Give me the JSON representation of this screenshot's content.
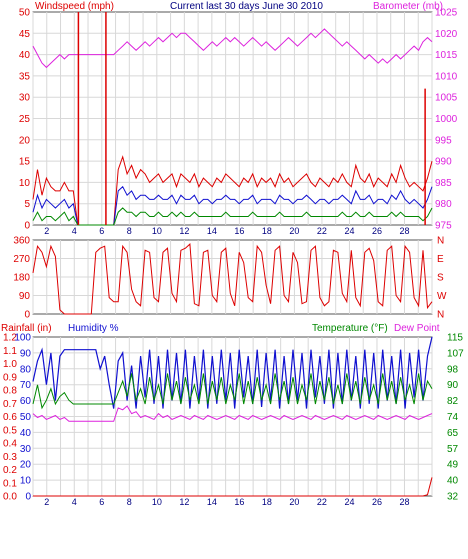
{
  "header": {
    "left_label": "Windspeed (mph)",
    "title": "Current last 30 days June 30 2010",
    "right_label": "Barometer (mb)"
  },
  "colors": {
    "wind_avg": "#1010d0",
    "wind_gust": "#dd0000",
    "wind_low": "#008800",
    "barometer": "#dd22dd",
    "wind_dir": "#dd0000",
    "humidity": "#1010d0",
    "temperature": "#008800",
    "dew_point": "#dd22dd",
    "rainfall": "#dd0000",
    "grid": "#d8d8d8",
    "frame": "#555555"
  },
  "panel3_labels": {
    "rainfall": "Rainfall (in)",
    "humidity": "Humidity %",
    "temperature": "Temperature (°F)",
    "dew_point": "Dew Point"
  },
  "chart_data": [
    {
      "type": "line",
      "title": "Current last 30 days June 30 2010",
      "xlabel": "",
      "x_ticks": [
        "2",
        "4",
        "6",
        "8",
        "10",
        "12",
        "14",
        "16",
        "18",
        "20",
        "22",
        "24",
        "26",
        "28"
      ],
      "xlim": [
        1,
        30
      ],
      "ylabel": "Windspeed (mph)",
      "ylim": [
        0,
        50
      ],
      "y_ticks": [
        "0",
        "5",
        "10",
        "15",
        "20",
        "25",
        "30",
        "35",
        "40",
        "45",
        "50"
      ],
      "y2label": "Barometer (mb)",
      "y2lim": [
        975,
        1025
      ],
      "y2_ticks": [
        "975",
        "980",
        "985",
        "990",
        "995",
        "1000",
        "1005",
        "1010",
        "1015",
        "1020",
        "1025"
      ],
      "grid": true,
      "series": [
        {
          "name": "wind_gust",
          "axis": "left",
          "values": [
            6,
            13,
            7,
            11,
            9,
            8,
            8,
            10,
            8,
            8,
            0,
            0,
            0,
            0,
            0,
            0,
            0,
            0,
            0,
            13,
            16,
            12,
            14,
            11,
            13,
            12,
            10,
            11,
            12,
            10,
            11,
            12,
            9,
            12,
            11,
            10,
            12,
            9,
            11,
            10,
            9,
            11,
            10,
            12,
            11,
            10,
            9,
            11,
            10,
            12,
            9,
            11,
            10,
            11,
            9,
            12,
            10,
            11,
            9,
            10,
            11,
            12,
            10,
            9,
            11,
            10,
            9,
            11,
            10,
            12,
            10,
            9,
            14,
            11,
            10,
            12,
            9,
            11,
            10,
            9,
            12,
            10,
            14,
            11,
            9,
            10,
            9,
            8,
            11,
            15
          ]
        },
        {
          "name": "wind_avg",
          "axis": "left",
          "values": [
            3,
            7,
            4,
            6,
            5,
            4,
            5,
            6,
            4,
            5,
            0,
            0,
            0,
            0,
            0,
            0,
            0,
            0,
            0,
            8,
            9,
            7,
            8,
            6,
            7,
            7,
            6,
            6,
            7,
            6,
            6,
            7,
            5,
            7,
            6,
            6,
            7,
            5,
            6,
            6,
            5,
            6,
            6,
            7,
            6,
            6,
            5,
            6,
            6,
            7,
            5,
            6,
            6,
            6,
            5,
            7,
            6,
            6,
            5,
            6,
            6,
            7,
            6,
            5,
            6,
            6,
            5,
            6,
            6,
            7,
            6,
            5,
            8,
            6,
            6,
            7,
            5,
            6,
            6,
            5,
            7,
            6,
            8,
            6,
            5,
            6,
            5,
            4,
            6,
            9
          ]
        },
        {
          "name": "wind_low",
          "axis": "left",
          "values": [
            1,
            3,
            1,
            2,
            2,
            1,
            2,
            3,
            1,
            2,
            0,
            0,
            0,
            0,
            0,
            0,
            0,
            0,
            0,
            3,
            4,
            3,
            3,
            2,
            3,
            3,
            2,
            2,
            3,
            2,
            2,
            3,
            2,
            3,
            2,
            2,
            3,
            2,
            2,
            2,
            2,
            2,
            2,
            3,
            2,
            2,
            2,
            2,
            2,
            3,
            2,
            2,
            2,
            2,
            2,
            3,
            2,
            2,
            2,
            2,
            2,
            3,
            2,
            2,
            2,
            2,
            2,
            2,
            2,
            3,
            2,
            2,
            3,
            2,
            2,
            3,
            2,
            2,
            2,
            2,
            3,
            2,
            3,
            2,
            2,
            2,
            2,
            1,
            2,
            4
          ]
        },
        {
          "name": "barometer",
          "axis": "right",
          "values": [
            1017,
            1015,
            1013,
            1012,
            1013,
            1014,
            1015,
            1014,
            1015,
            1015,
            1015,
            1015,
            1015,
            1015,
            1015,
            1015,
            1015,
            1015,
            1015,
            1016,
            1017,
            1018,
            1017,
            1016,
            1017,
            1018,
            1017,
            1018,
            1019,
            1018,
            1019,
            1020,
            1019,
            1020,
            1020,
            1019,
            1018,
            1017,
            1016,
            1017,
            1018,
            1017,
            1018,
            1019,
            1018,
            1019,
            1018,
            1017,
            1018,
            1019,
            1018,
            1017,
            1018,
            1017,
            1016,
            1017,
            1018,
            1019,
            1018,
            1017,
            1018,
            1019,
            1020,
            1019,
            1020,
            1021,
            1020,
            1019,
            1018,
            1017,
            1018,
            1017,
            1016,
            1015,
            1014,
            1015,
            1014,
            1013,
            1014,
            1013,
            1014,
            1015,
            1014,
            1015,
            1016,
            1017,
            1016,
            1018,
            1019,
            1018
          ]
        }
      ],
      "spikes": [
        {
          "series": "wind_gust",
          "x": 4.3,
          "value": 50
        },
        {
          "series": "wind_gust",
          "x": 6.3,
          "value": 50
        },
        {
          "series": "wind_gust",
          "x": 29.5,
          "value": 32
        }
      ]
    },
    {
      "type": "line",
      "xlim": [
        1,
        30
      ],
      "ylim": [
        0,
        360
      ],
      "y_ticks": [
        "0",
        "90",
        "180",
        "270",
        "360"
      ],
      "y2_ticks": [
        "N",
        "W",
        "S",
        "E",
        "N"
      ],
      "grid": true,
      "series": [
        {
          "name": "wind_direction",
          "values": [
            200,
            330,
            300,
            230,
            330,
            280,
            20,
            0,
            0,
            0,
            0,
            0,
            0,
            0,
            300,
            320,
            330,
            80,
            60,
            60,
            330,
            300,
            120,
            60,
            40,
            310,
            300,
            80,
            60,
            300,
            320,
            100,
            60,
            310,
            320,
            340,
            50,
            40,
            300,
            310,
            90,
            60,
            300,
            320,
            100,
            40,
            300,
            250,
            80,
            60,
            330,
            300,
            140,
            50,
            310,
            330,
            90,
            60,
            300,
            250,
            50,
            60,
            310,
            330,
            80,
            40,
            60,
            310,
            300,
            100,
            60,
            310,
            80,
            40,
            300,
            320,
            260,
            60,
            40,
            310,
            330,
            90,
            60,
            330,
            300,
            80,
            40,
            310,
            30,
            60
          ]
        }
      ]
    },
    {
      "type": "line",
      "xlim": [
        1,
        30
      ],
      "left_axis": {
        "name": "Humidity %",
        "ylim": [
          0,
          100
        ],
        "y_ticks": [
          "0",
          "10",
          "20",
          "30",
          "40",
          "50",
          "60",
          "70",
          "80",
          "90",
          "100"
        ]
      },
      "rain_axis": {
        "name": "Rainfall (in)",
        "ylim": [
          0,
          1.2
        ],
        "y_ticks": [
          "0.0",
          "0.1",
          "0.2",
          "0.3",
          "0.4",
          "0.5",
          "0.6",
          "0.7",
          "0.8",
          "0.9",
          "1.0",
          "1.1",
          "1.2"
        ]
      },
      "right_axis": {
        "name": "Temperature (°F)",
        "ylim": [
          32,
          115
        ],
        "y_ticks": [
          "32",
          "40",
          "49",
          "57",
          "65",
          "74",
          "82",
          "90",
          "98",
          "107",
          "115"
        ]
      },
      "grid": true,
      "series": [
        {
          "name": "humidity",
          "axis": "left",
          "values": [
            72,
            85,
            92,
            70,
            90,
            60,
            88,
            92,
            92,
            92,
            92,
            92,
            92,
            92,
            92,
            80,
            88,
            70,
            55,
            85,
            90,
            60,
            82,
            55,
            88,
            62,
            92,
            58,
            88,
            55,
            92,
            60,
            90,
            58,
            92,
            55,
            88,
            60,
            92,
            55,
            88,
            58,
            92,
            60,
            90,
            55,
            92,
            62,
            88,
            58,
            92,
            56,
            90,
            60,
            92,
            55,
            88,
            58,
            92,
            60,
            90,
            55,
            92,
            62,
            88,
            58,
            92,
            55,
            90,
            58,
            92,
            60,
            88,
            55,
            92,
            58,
            90,
            55,
            92,
            60,
            88,
            58,
            92,
            55,
            90,
            62,
            92,
            60,
            88,
            100
          ]
        },
        {
          "name": "dew_point",
          "axis": "right",
          "values": [
            75,
            73,
            74,
            72,
            73,
            74,
            72,
            73,
            71,
            71,
            71,
            71,
            71,
            71,
            71,
            71,
            71,
            71,
            71,
            78,
            77,
            79,
            75,
            76,
            73,
            74,
            73,
            72,
            75,
            73,
            74,
            72,
            73,
            74,
            73,
            72,
            74,
            73,
            72,
            74,
            73,
            72,
            73,
            74,
            73,
            72,
            74,
            73,
            72,
            74,
            73,
            72,
            73,
            74,
            73,
            72,
            74,
            73,
            72,
            73,
            74,
            73,
            72,
            74,
            73,
            72,
            73,
            74,
            73,
            72,
            74,
            73,
            72,
            73,
            74,
            73,
            72,
            74,
            73,
            72,
            73,
            74,
            73,
            72,
            74,
            73,
            72,
            73,
            74,
            75
          ]
        },
        {
          "name": "temperature",
          "axis": "right",
          "values": [
            80,
            90,
            78,
            82,
            88,
            80,
            84,
            86,
            82,
            80,
            80,
            80,
            80,
            80,
            80,
            80,
            80,
            80,
            80,
            86,
            92,
            84,
            96,
            82,
            88,
            80,
            94,
            82,
            90,
            80,
            96,
            82,
            92,
            80,
            94,
            82,
            90,
            80,
            96,
            80,
            92,
            82,
            94,
            80,
            90,
            82,
            96,
            80,
            92,
            80,
            94,
            82,
            90,
            80,
            96,
            82,
            92,
            80,
            94,
            80,
            90,
            82,
            96,
            80,
            92,
            82,
            94,
            80,
            90,
            80,
            96,
            82,
            92,
            80,
            94,
            82,
            90,
            80,
            96,
            82,
            92,
            80,
            94,
            82,
            90,
            80,
            96,
            82,
            92,
            88
          ]
        },
        {
          "name": "rainfall",
          "axis": "rain",
          "values": [
            0,
            0,
            0,
            0,
            0,
            0,
            0,
            0,
            0,
            0,
            0,
            0,
            0,
            0,
            0,
            0,
            0,
            0,
            0,
            0,
            0,
            0,
            0,
            0,
            0,
            0,
            0,
            0,
            0,
            0,
            0,
            0,
            0,
            0,
            0,
            0,
            0,
            0,
            0,
            0,
            0,
            0,
            0,
            0,
            0,
            0,
            0,
            0,
            0,
            0,
            0,
            0,
            0,
            0,
            0,
            0,
            0,
            0,
            0,
            0,
            0,
            0,
            0,
            0,
            0,
            0,
            0,
            0,
            0,
            0,
            0,
            0,
            0,
            0,
            0,
            0,
            0,
            0,
            0,
            0,
            0,
            0,
            0,
            0,
            0,
            0,
            0,
            0,
            0.01,
            0.14
          ]
        }
      ]
    }
  ]
}
